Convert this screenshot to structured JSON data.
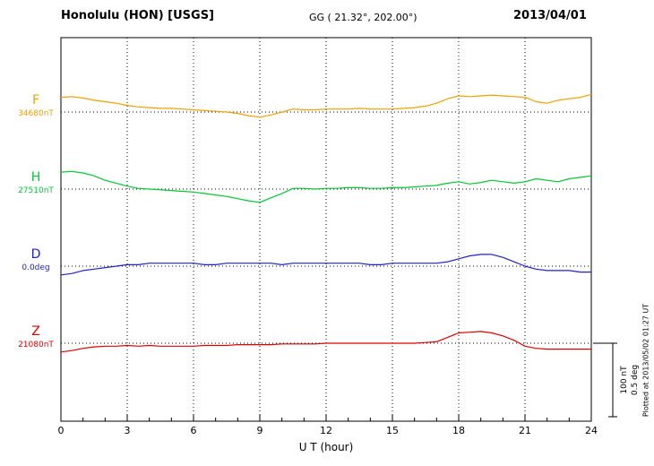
{
  "header": {
    "station": "Honolulu (HON)  [USGS]",
    "coords": "GG ( 21.32°, 202.00°)",
    "date": "2013/04/01"
  },
  "sidebar_right": {
    "plotted_at": "Plotted at 2013/05/02 01:27 UT"
  },
  "chart_data": {
    "type": "line",
    "title": "Honolulu (HON) [USGS] magnetogram 2013/04/01",
    "xlabel": "U T (hour)",
    "x_range": [
      0,
      24
    ],
    "x_ticks": [
      0,
      3,
      6,
      9,
      12,
      15,
      18,
      21,
      24
    ],
    "grid": "dotted vertical lines every 3 hours, dotted horizontal baseline per trace",
    "scale_bar": {
      "nT_label": "100 nT",
      "deg_label": "0.5 deg",
      "nT": 100,
      "deg": 0.5
    },
    "x": [
      0,
      0.5,
      1,
      1.5,
      2,
      2.5,
      3,
      3.5,
      4,
      4.5,
      5,
      5.5,
      6,
      6.5,
      7,
      7.5,
      8,
      8.5,
      9,
      9.5,
      10,
      10.5,
      11,
      11.5,
      12,
      12.5,
      13,
      13.5,
      14,
      14.5,
      15,
      15.5,
      16,
      16.5,
      17,
      17.5,
      18,
      18.5,
      19,
      19.5,
      20,
      20.5,
      21,
      21.5,
      22,
      22.5,
      23,
      23.5,
      24
    ],
    "series": [
      {
        "name": "F",
        "baseline_label": "34680nT",
        "baseline_value": 34680,
        "unit": "nT",
        "color": "#f0a000",
        "values": [
          20,
          21,
          19,
          16,
          14,
          12,
          9,
          7,
          6,
          5,
          5,
          4,
          3,
          2,
          1,
          0,
          -2,
          -5,
          -7,
          -4,
          0,
          4,
          3,
          3,
          4,
          4,
          4,
          5,
          4,
          4,
          4,
          5,
          6,
          8,
          12,
          18,
          22,
          21,
          22,
          23,
          22,
          21,
          20,
          14,
          12,
          16,
          18,
          20,
          24
        ]
      },
      {
        "name": "H",
        "baseline_label": "27510nT",
        "baseline_value": 27510,
        "unit": "nT",
        "color": "#00c832",
        "values": [
          23,
          24,
          22,
          18,
          12,
          8,
          4,
          1,
          0,
          -1,
          -2,
          -3,
          -4,
          -6,
          -8,
          -10,
          -13,
          -16,
          -18,
          -12,
          -6,
          1,
          1,
          0,
          1,
          1,
          2,
          2,
          1,
          1,
          2,
          2,
          3,
          4,
          5,
          8,
          10,
          7,
          9,
          12,
          10,
          8,
          10,
          14,
          12,
          10,
          14,
          16,
          18
        ]
      },
      {
        "name": "D",
        "baseline_label": "0.0deg",
        "baseline_value": 0.0,
        "unit": "deg",
        "color": "#2020cc",
        "values": [
          -0.06,
          -0.05,
          -0.03,
          -0.02,
          -0.01,
          0,
          0.01,
          0.01,
          0.02,
          0.02,
          0.02,
          0.02,
          0.02,
          0.01,
          0.01,
          0.02,
          0.02,
          0.02,
          0.02,
          0.02,
          0.01,
          0.02,
          0.02,
          0.02,
          0.02,
          0.02,
          0.02,
          0.02,
          0.01,
          0.01,
          0.02,
          0.02,
          0.02,
          0.02,
          0.02,
          0.03,
          0.05,
          0.07,
          0.08,
          0.08,
          0.06,
          0.03,
          0,
          -0.02,
          -0.03,
          -0.03,
          -0.03,
          -0.04,
          -0.04
        ]
      },
      {
        "name": "Z",
        "baseline_label": "21080nT",
        "baseline_value": 21080,
        "unit": "nT",
        "color": "#e00000",
        "values": [
          -12,
          -10,
          -7,
          -5,
          -4,
          -4,
          -3,
          -4,
          -3,
          -4,
          -4,
          -4,
          -4,
          -3,
          -3,
          -3,
          -2,
          -2,
          -2,
          -2,
          -1,
          -1,
          -1,
          -1,
          0,
          0,
          0,
          0,
          0,
          0,
          0,
          0,
          0,
          1,
          2,
          8,
          14,
          15,
          16,
          14,
          10,
          4,
          -4,
          -7,
          -8,
          -8,
          -8,
          -8,
          -8
        ]
      }
    ]
  }
}
